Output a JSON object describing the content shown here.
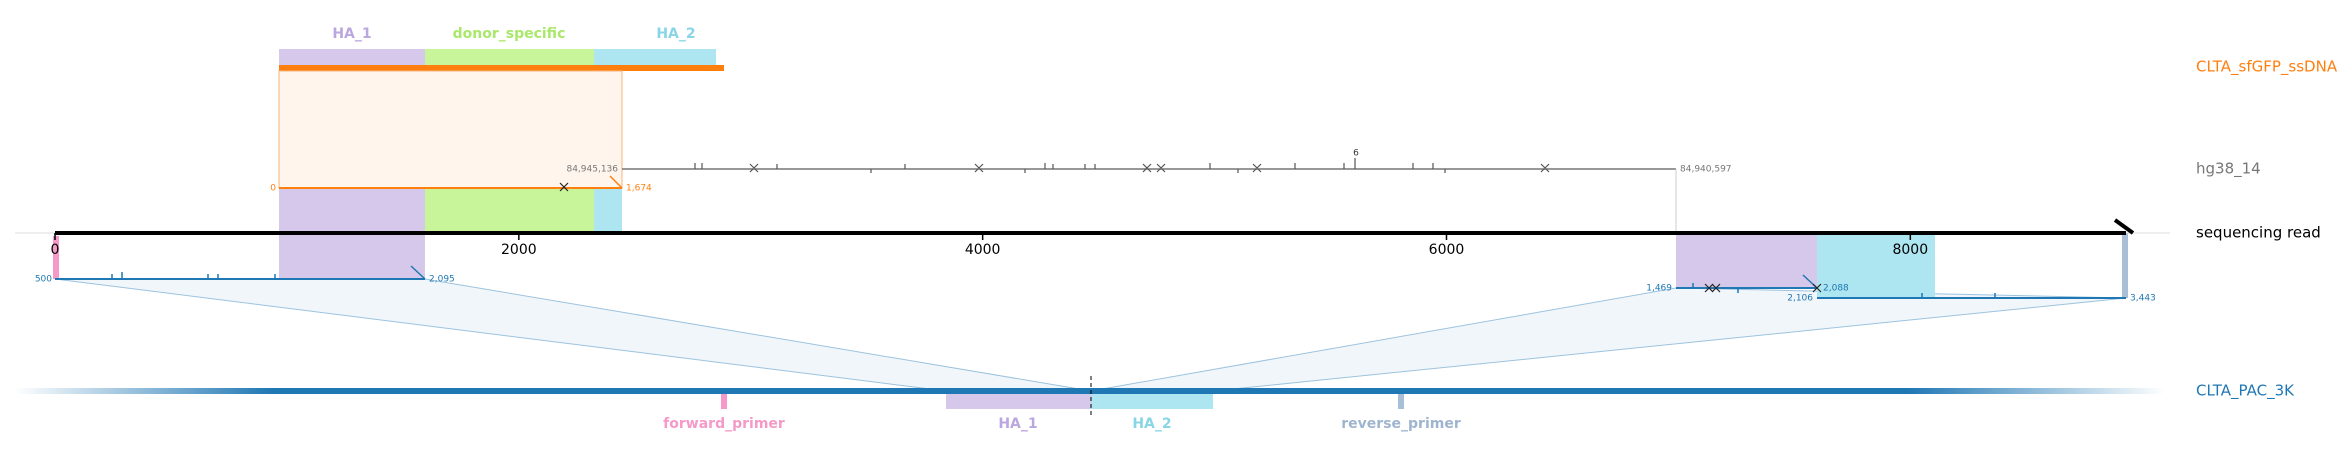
{
  "donor": {
    "label": "CLTA_sfGFP_ssDNA",
    "features": [
      "HA_1",
      "donor_specific",
      "HA_2"
    ],
    "start": "0",
    "end": "1,674"
  },
  "reference": {
    "label": "hg38_14",
    "start": "84,945,136",
    "end": "84,940,597",
    "peak": "6"
  },
  "read": {
    "label": "sequencing read",
    "axis": {
      "lim": [
        0,
        8930
      ],
      "ticks": [
        0,
        2000,
        4000,
        6000,
        8000
      ]
    },
    "left_alignment": {
      "start": "500",
      "end": "2,095"
    },
    "right_alignment": {
      "start": "1,469",
      "end": "2,088"
    },
    "right_alignment_2": {
      "start": "2,106",
      "end": "3,443"
    }
  },
  "amplicon": {
    "label": "CLTA_PAC_3K",
    "features": [
      "forward_primer",
      "HA_1",
      "HA_2",
      "reverse_primer"
    ]
  }
}
